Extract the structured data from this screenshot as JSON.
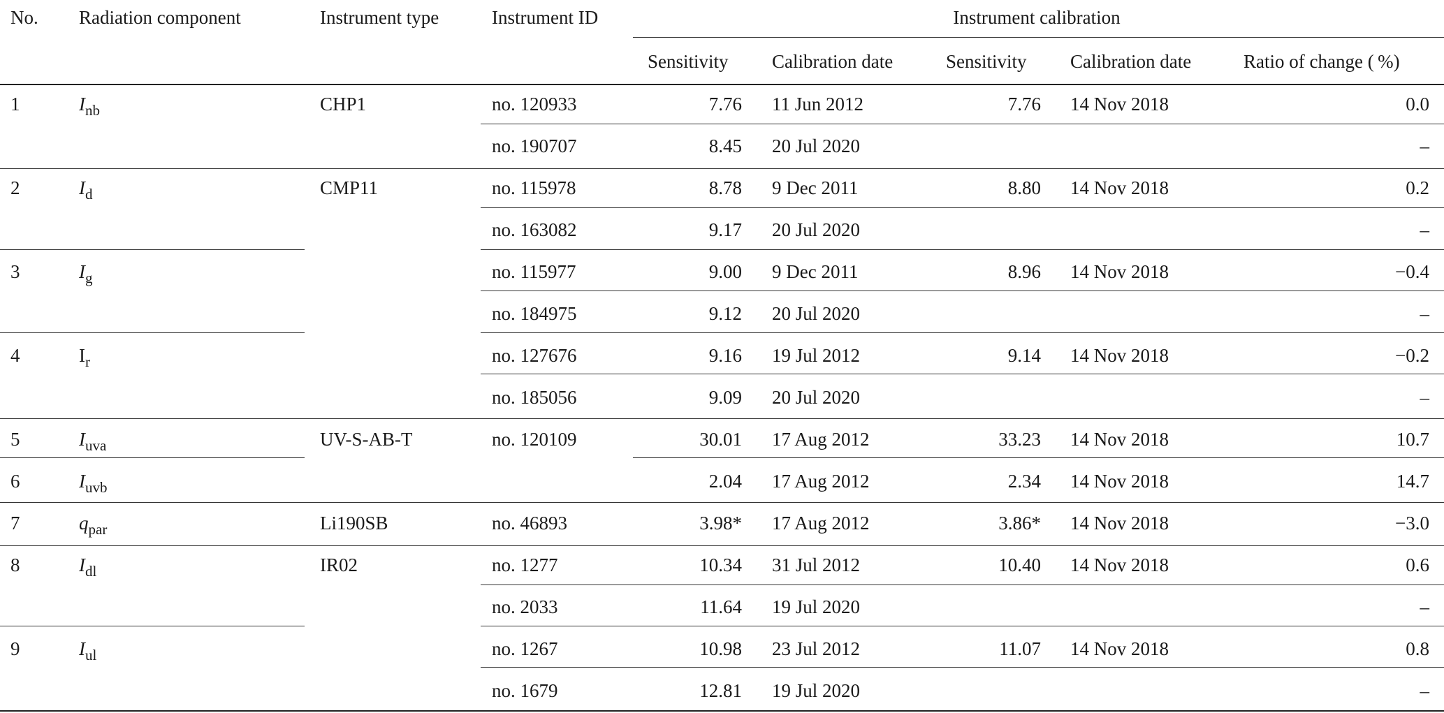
{
  "header": {
    "no": "No.",
    "component": "Radiation component",
    "type": "Instrument type",
    "id": "Instrument ID",
    "calibration": "Instrument calibration",
    "sens1": "Sensitivity",
    "date1": "Calibration date",
    "sens2": "Sensitivity",
    "date2": "Calibration date",
    "ratio": "Ratio of change ( %)"
  },
  "groups": [
    {
      "no": "1",
      "sym": "I",
      "sub": "nb",
      "italic": true
    },
    {
      "no": "2",
      "sym": "I",
      "sub": "d",
      "italic": true
    },
    {
      "no": "3",
      "sym": "I",
      "sub": "g",
      "italic": true
    },
    {
      "no": "4",
      "sym": "I",
      "sub": "r",
      "italic": false
    },
    {
      "no": "5",
      "sym": "I",
      "sub": "uva",
      "italic": true
    },
    {
      "no": "6",
      "sym": "I",
      "sub": "uvb",
      "italic": true
    },
    {
      "no": "7",
      "sym": "q",
      "sub": "par",
      "italic": true
    },
    {
      "no": "8",
      "sym": "I",
      "sub": "dl",
      "italic": true
    },
    {
      "no": "9",
      "sym": "I",
      "sub": "ul",
      "italic": true
    }
  ],
  "types": [
    "CHP1",
    "CMP11",
    "UV-S-AB-T",
    "Li190SB",
    "IR02"
  ],
  "rows": [
    {
      "id": "no. 120933",
      "sens1": "7.76",
      "date1": "11 Jun 2012",
      "sens2": "7.76",
      "date2": "14 Nov 2018",
      "ratio": "0.0"
    },
    {
      "id": "no. 190707",
      "sens1": "8.45",
      "date1": "20 Jul 2020",
      "sens2": "",
      "date2": "",
      "ratio": "–"
    },
    {
      "id": "no. 115978",
      "sens1": "8.78",
      "date1": "9 Dec 2011",
      "sens2": "8.80",
      "date2": "14 Nov 2018",
      "ratio": "0.2"
    },
    {
      "id": "no. 163082",
      "sens1": "9.17",
      "date1": "20 Jul 2020",
      "sens2": "",
      "date2": "",
      "ratio": "–"
    },
    {
      "id": "no. 115977",
      "sens1": "9.00",
      "date1": "9 Dec 2011",
      "sens2": "8.96",
      "date2": "14 Nov 2018",
      "ratio": "−0.4"
    },
    {
      "id": "no. 184975",
      "sens1": "9.12",
      "date1": "20 Jul 2020",
      "sens2": "",
      "date2": "",
      "ratio": "–"
    },
    {
      "id": "no. 127676",
      "sens1": "9.16",
      "date1": "19 Jul 2012",
      "sens2": "9.14",
      "date2": "14 Nov 2018",
      "ratio": "−0.2"
    },
    {
      "id": "no. 185056",
      "sens1": "9.09",
      "date1": "20 Jul 2020",
      "sens2": "",
      "date2": "",
      "ratio": "–"
    },
    {
      "id": "no. 120109",
      "sens1": "30.01",
      "date1": "17 Aug 2012",
      "sens2": "33.23",
      "date2": "14 Nov 2018",
      "ratio": "10.7"
    },
    {
      "id": "",
      "sens1": "2.04",
      "date1": "17 Aug 2012",
      "sens2": "2.34",
      "date2": "14 Nov 2018",
      "ratio": "14.7"
    },
    {
      "id": "no. 46893",
      "sens1": "3.98*",
      "date1": "17 Aug 2012",
      "sens2": "3.86*",
      "date2": "14 Nov 2018",
      "ratio": "−3.0"
    },
    {
      "id": "no. 1277",
      "sens1": "10.34",
      "date1": "31 Jul 2012",
      "sens2": "10.40",
      "date2": "14 Nov 2018",
      "ratio": "0.6"
    },
    {
      "id": "no. 2033",
      "sens1": "11.64",
      "date1": "19 Jul 2020",
      "sens2": "",
      "date2": "",
      "ratio": "–"
    },
    {
      "id": "no. 1267",
      "sens1": "10.98",
      "date1": "23 Jul 2012",
      "sens2": "11.07",
      "date2": "14 Nov 2018",
      "ratio": "0.8"
    },
    {
      "id": "no. 1679",
      "sens1": "12.81",
      "date1": "19 Jul 2020",
      "sens2": "",
      "date2": "",
      "ratio": "–"
    }
  ]
}
